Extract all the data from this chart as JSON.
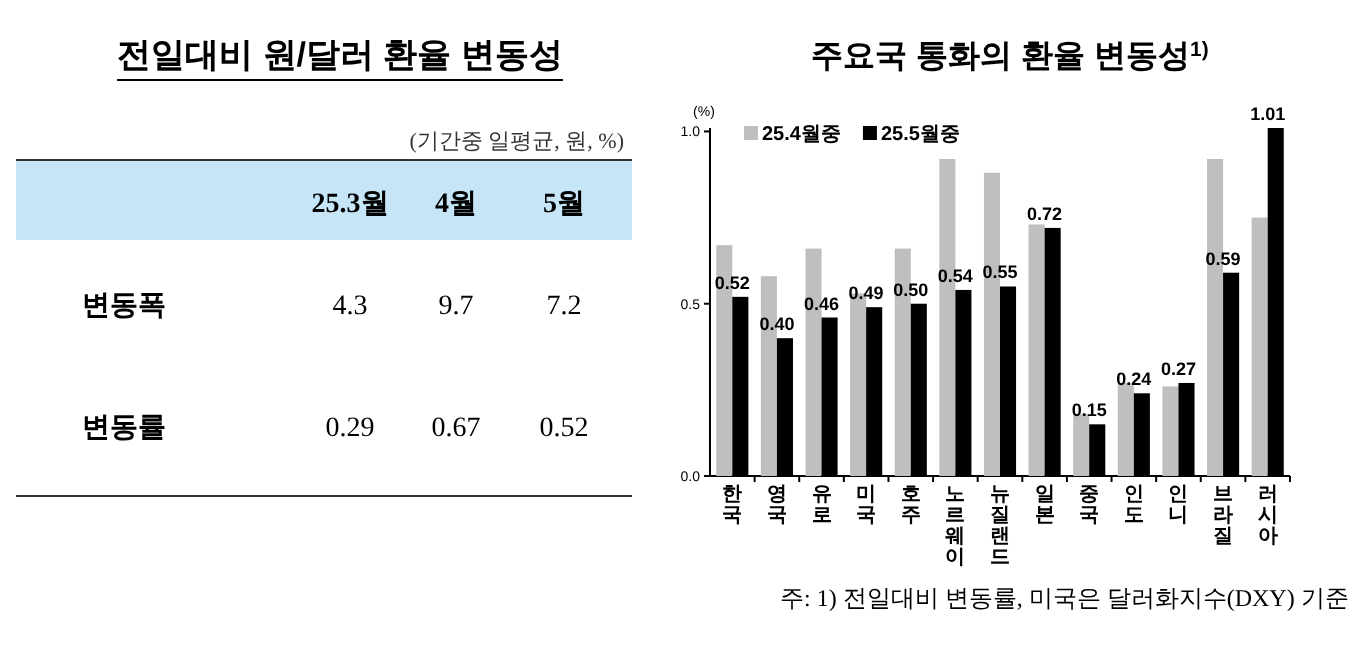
{
  "chart_data": [
    {
      "type": "other",
      "title": "전일대비 원/달러 환율 변동성",
      "subtitle": "(기간중 일평균, 원, %)",
      "categories": [
        "25.3월",
        "4월",
        "5월"
      ],
      "y_categories": [
        "변동폭",
        "변동률"
      ],
      "cell_labels": [
        [
          "4.3",
          "9.7",
          "7.2"
        ],
        [
          "0.29",
          "0.67",
          "0.52"
        ]
      ]
    },
    {
      "type": "bar",
      "title": "주요국 통화의 환율 변동성$^{1)}$",
      "ylabel": "(%)",
      "categories": [
        "한국",
        "영국",
        "유로",
        "미국",
        "호주",
        "노르웨이",
        "뉴질랜드",
        "일본",
        "중국",
        "인도",
        "인니",
        "브라질",
        "러시아"
      ],
      "series": [
        {
          "name": "25.4월중",
          "color": "#bfbfbf",
          "values": [
            0.67,
            0.58,
            0.66,
            0.53,
            0.66,
            0.92,
            0.88,
            0.73,
            0.18,
            0.27,
            0.26,
            0.92,
            0.75
          ]
        },
        {
          "name": "25.5월중",
          "color": "#000000",
          "values": [
            0.52,
            0.4,
            0.46,
            0.49,
            0.5,
            0.54,
            0.55,
            0.72,
            0.15,
            0.24,
            0.27,
            0.59,
            1.01
          ],
          "value_labels": [
            "0.52",
            "0.40",
            "0.46",
            "0.49",
            "0.50",
            "0.54",
            "0.55",
            "0.72",
            "0.15",
            "0.24",
            "0.27",
            "0.59",
            "1.01"
          ]
        }
      ],
      "ylim": [
        0,
        1.01
      ],
      "yticks": [
        {
          "value": 0,
          "label": "0.0"
        },
        {
          "value": 0.5,
          "label": "0.5"
        },
        {
          "value": 1,
          "label": "1.0"
        }
      ],
      "legend": "top left",
      "annotations": [
        "주: 1) 전일대비 변동률, 미국은 달러화지수(DXY) 기준"
      ]
    }
  ]
}
